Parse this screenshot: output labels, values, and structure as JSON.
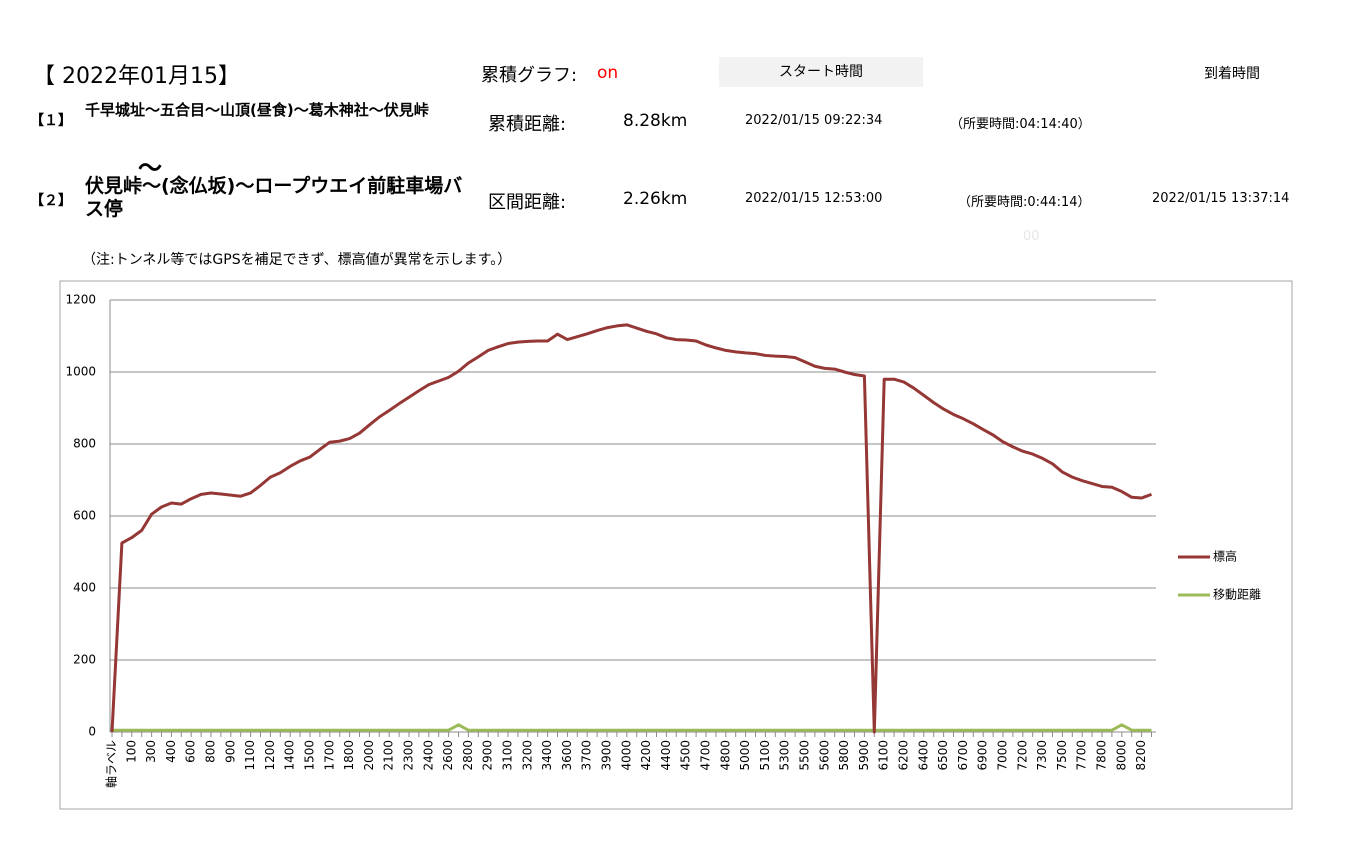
{
  "header": {
    "title": "【 2022年01月15】",
    "cumulative_label": "累積グラフ:",
    "cumulative_state": "on",
    "start_header": "スタート時間",
    "arrival_header": "到着時間",
    "tilde": "～",
    "faint": "00",
    "note": "（注:トンネル等ではGPSを補足できず、標高値が異常を示します。）"
  },
  "rows": [
    {
      "index": "【１】",
      "route": "千早城址～五合目～山頂(昼食)～葛木神社～伏見峠",
      "distance_label": "累積距離:",
      "distance": "8.28km",
      "start": "2022/01/15 09:22:34",
      "duration": "（所要時間:04:14:40）"
    },
    {
      "index": "【２】",
      "route": "伏見峠～(念仏坂)～ロープウエイ前駐車場バス停",
      "distance_label": "区間距離:",
      "distance": "2.26km",
      "start": "2022/01/15 12:53:00",
      "duration": "（所要時間:0:44:14）",
      "arrival": "2022/01/15 13:37:14"
    }
  ],
  "chart_data": {
    "type": "line",
    "categories": [
      "軸ラベル",
      null,
      100,
      null,
      300,
      null,
      400,
      null,
      600,
      null,
      800,
      null,
      900,
      null,
      1100,
      null,
      1200,
      null,
      1400,
      null,
      1500,
      null,
      1700,
      null,
      1800,
      null,
      2000,
      null,
      2100,
      null,
      2300,
      null,
      2400,
      null,
      2600,
      null,
      2800,
      null,
      2900,
      null,
      3100,
      null,
      3200,
      null,
      3400,
      null,
      3600,
      null,
      3700,
      null,
      3900,
      null,
      4000,
      null,
      4200,
      null,
      4400,
      null,
      4500,
      null,
      4700,
      null,
      4800,
      null,
      5000,
      null,
      5100,
      null,
      5300,
      null,
      5500,
      null,
      5600,
      null,
      5800,
      null,
      5900,
      null,
      6100,
      null,
      6200,
      null,
      6400,
      null,
      6500,
      null,
      6700,
      null,
      6900,
      null,
      7000,
      null,
      7200,
      null,
      7300,
      null,
      7500,
      null,
      7700,
      null,
      7800,
      null,
      8000,
      null,
      8200,
      null
    ],
    "series": [
      {
        "name": "標高",
        "color": "#953735",
        "values": [
          0,
          525,
          540,
          560,
          605,
          625,
          636,
          633,
          648,
          660,
          664,
          661,
          658,
          655,
          664,
          685,
          708,
          720,
          738,
          753,
          764,
          785,
          805,
          808,
          815,
          830,
          853,
          875,
          893,
          912,
          930,
          948,
          965,
          975,
          985,
          1002,
          1025,
          1042,
          1060,
          1070,
          1079,
          1083,
          1085,
          1086,
          1086,
          1105,
          1090,
          1098,
          1106,
          1115,
          1123,
          1128,
          1131,
          1122,
          1113,
          1106,
          1095,
          1090,
          1089,
          1086,
          1075,
          1067,
          1060,
          1056,
          1053,
          1051,
          1046,
          1044,
          1043,
          1040,
          1028,
          1016,
          1010,
          1008,
          1000,
          993,
          989,
          0,
          980,
          980,
          972,
          955,
          935,
          915,
          897,
          882,
          870,
          856,
          840,
          825,
          806,
          792,
          780,
          772,
          760,
          745,
          722,
          708,
          698,
          690,
          682,
          680,
          668,
          652,
          650,
          660
        ]
      },
      {
        "name": "移動距離",
        "color": "#9bbb59",
        "values": [
          5,
          5,
          5,
          5,
          5,
          5,
          5,
          5,
          5,
          5,
          5,
          5,
          5,
          5,
          5,
          5,
          5,
          5,
          5,
          5,
          5,
          5,
          5,
          5,
          5,
          5,
          5,
          5,
          5,
          5,
          5,
          5,
          5,
          5,
          5,
          20,
          5,
          5,
          5,
          5,
          5,
          5,
          5,
          5,
          5,
          5,
          5,
          5,
          5,
          5,
          5,
          5,
          5,
          5,
          5,
          5,
          5,
          5,
          5,
          5,
          5,
          5,
          5,
          5,
          5,
          5,
          5,
          5,
          5,
          5,
          5,
          5,
          5,
          5,
          5,
          5,
          5,
          5,
          5,
          5,
          5,
          5,
          5,
          5,
          5,
          5,
          5,
          5,
          5,
          5,
          5,
          5,
          5,
          5,
          5,
          5,
          5,
          5,
          5,
          5,
          5,
          5,
          20,
          5,
          5,
          5
        ]
      }
    ],
    "ylim": [
      0,
      1200
    ],
    "yticks": [
      0,
      200,
      400,
      600,
      800,
      1000,
      1200
    ],
    "grid": true,
    "legend": "right"
  }
}
